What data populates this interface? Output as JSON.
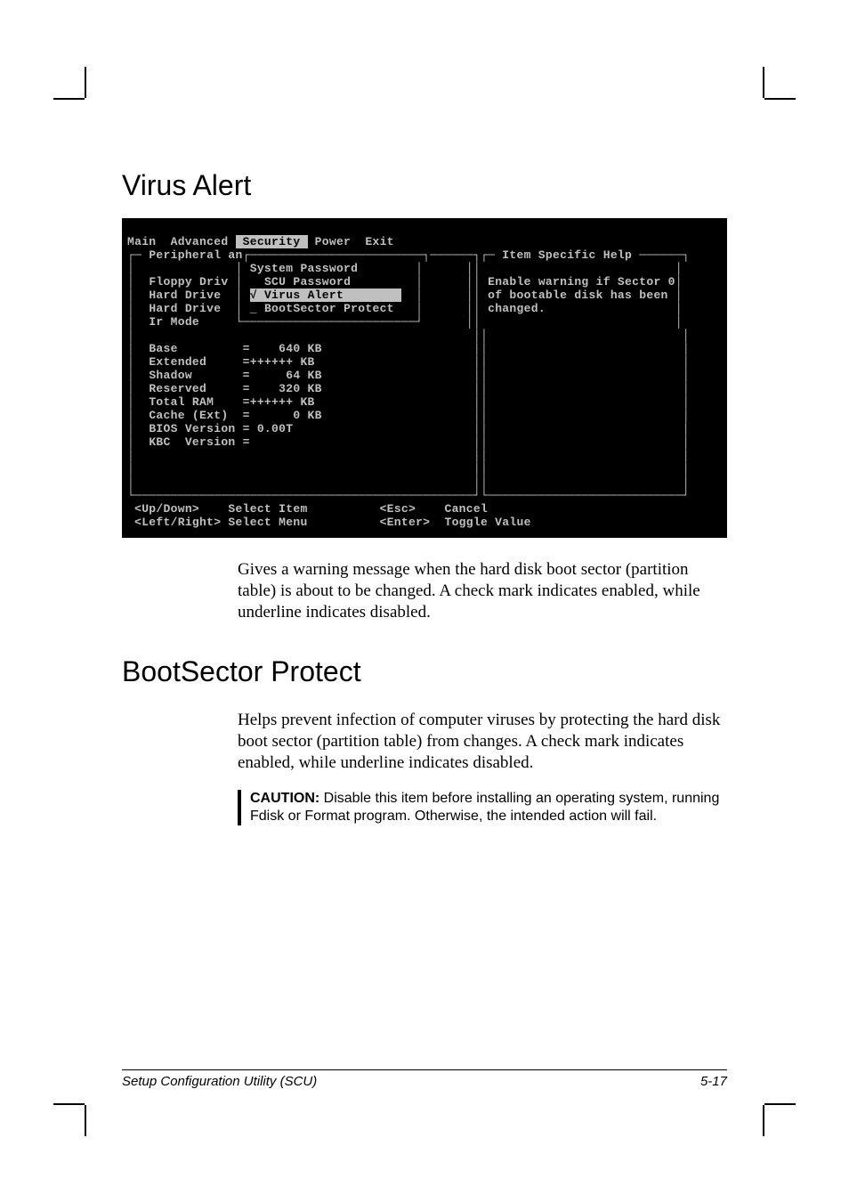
{
  "headings": {
    "h1": "Virus Alert",
    "h2": "BootSector Protect"
  },
  "bios": {
    "menu": {
      "main": "Main",
      "advanced": "Advanced",
      "security": " Security ",
      "power": "Power",
      "exit": "Exit"
    },
    "left_panel_title": "Peripheral an",
    "popup": {
      "i1": "System Password",
      "i2": "SCU Password",
      "i3_check": "√",
      "i3": " Virus Alert        ",
      "i4": "_ BootSector Protect"
    },
    "left_items": {
      "l1": "Floppy Driv",
      "l2": "Hard Drive ",
      "l3": "Hard Drive ",
      "l4": "Ir Mode"
    },
    "mem": {
      "base": "Base         =    640 KB",
      "ext": "Extended     =++++++ KB",
      "shadow": "Shadow       =     64 KB",
      "reserved": "Reserved     =    320 KB",
      "total": "Total RAM    =++++++ KB",
      "cache": "Cache (Ext)  =      0 KB",
      "biosver": "BIOS Version = 0.00T",
      "kbcver": "KBC  Version ="
    },
    "help_title": "Item Specific Help",
    "help_l1": "Enable warning if Sector 0",
    "help_l2": "of bootable disk has been",
    "help_l3": "changed.",
    "footer": {
      "updown": "<Up/Down>    Select Item",
      "leftrt": "<Left/Right> Select Menu",
      "esc": "<Esc>    Cancel",
      "enter": "<Enter>  Toggle Value"
    }
  },
  "para1": "Gives a warning message when the hard disk boot sector (partition table) is about to be changed. A check mark indicates enabled, while underline indicates disabled.",
  "para2": "Helps prevent infection of computer viruses by protecting the hard disk boot sector (partition table) from changes. A check mark indicates enabled, while underline indicates disabled.",
  "caution_label": "CAUTION:",
  "caution_text": " Disable this item before installing an operating system, running Fdisk or Format program. Otherwise, the intended action will fail.",
  "footer_left": "Setup Configuration Utility (SCU)",
  "footer_right": "5-17"
}
